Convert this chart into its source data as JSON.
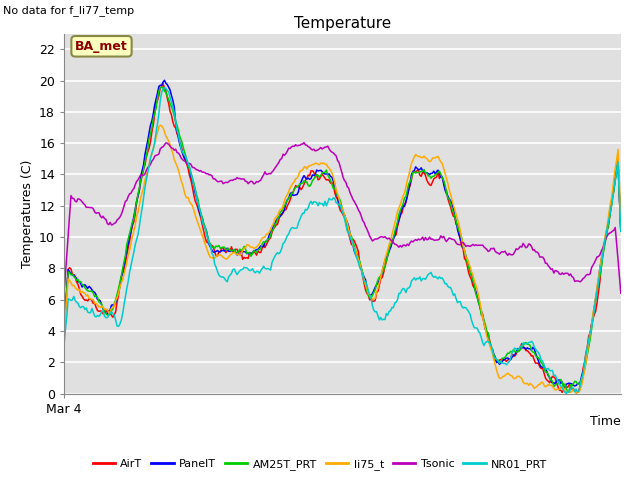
{
  "title": "Temperature",
  "xlabel": "",
  "ylabel": "Temperatures (C)",
  "top_left_text": "No data for f_li77_temp",
  "annotation_text": "BA_met",
  "xticklabel": "Mar 4",
  "ylim": [
    0,
    23
  ],
  "yticks": [
    0,
    2,
    4,
    6,
    8,
    10,
    12,
    14,
    16,
    18,
    20,
    22
  ],
  "bg_color": "#e0e0e0",
  "series_colors": {
    "AirT": "#ff0000",
    "PanelT": "#0000ff",
    "AM25T_PRT": "#00cc00",
    "li75_t": "#ffaa00",
    "Tsonic": "#bb00bb",
    "NR01_PRT": "#00cccc"
  },
  "legend_order": [
    "AirT",
    "PanelT",
    "AM25T_PRT",
    "li75_t",
    "Tsonic",
    "NR01_PRT"
  ]
}
